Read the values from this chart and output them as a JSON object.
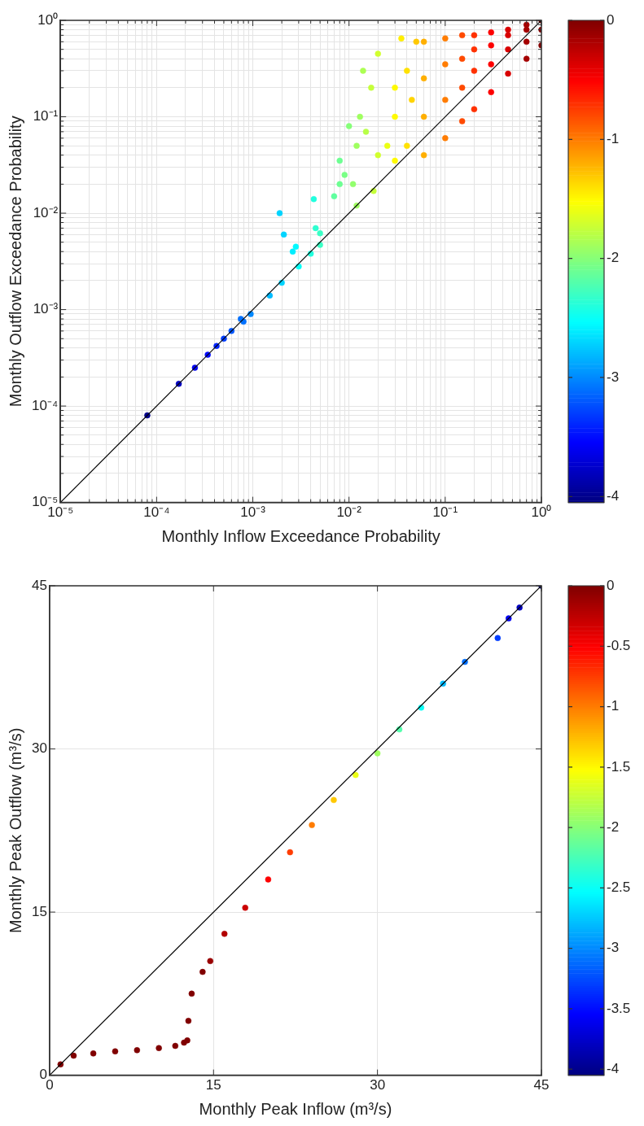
{
  "chart_data": [
    {
      "type": "scatter",
      "xlabel": "Monthly Inflow Exceedance Probability",
      "ylabel": "Monthly Outflow Exceedance Probability",
      "log": "xy",
      "grid": true,
      "xlim": [
        1e-05,
        1
      ],
      "ylim": [
        1e-05,
        1
      ],
      "xticks": [
        {
          "value": 1e-05,
          "label": "10⁻⁵"
        },
        {
          "value": 2e-05,
          "label": null
        },
        {
          "value": 3e-05,
          "label": null
        },
        {
          "value": 4e-05,
          "label": null
        },
        {
          "value": 5e-05,
          "label": null
        },
        {
          "value": 6e-05,
          "label": null
        },
        {
          "value": 7e-05,
          "label": null
        },
        {
          "value": 8e-05,
          "label": null
        },
        {
          "value": 9e-05,
          "label": null
        },
        {
          "value": 0.0001,
          "label": "10⁻⁴"
        },
        {
          "value": 0.0002,
          "label": null
        },
        {
          "value": 0.0003,
          "label": null
        },
        {
          "value": 0.0004,
          "label": null
        },
        {
          "value": 0.0005,
          "label": null
        },
        {
          "value": 0.0006,
          "label": null
        },
        {
          "value": 0.0007,
          "label": null
        },
        {
          "value": 0.0008,
          "label": null
        },
        {
          "value": 0.0009,
          "label": null
        },
        {
          "value": 0.001,
          "label": "10⁻³"
        },
        {
          "value": 0.002,
          "label": null
        },
        {
          "value": 0.003,
          "label": null
        },
        {
          "value": 0.004,
          "label": null
        },
        {
          "value": 0.005,
          "label": null
        },
        {
          "value": 0.006,
          "label": null
        },
        {
          "value": 0.007,
          "label": null
        },
        {
          "value": 0.008,
          "label": null
        },
        {
          "value": 0.009,
          "label": null
        },
        {
          "value": 0.01,
          "label": "10⁻²"
        },
        {
          "value": 0.02,
          "label": null
        },
        {
          "value": 0.03,
          "label": null
        },
        {
          "value": 0.04,
          "label": null
        },
        {
          "value": 0.05,
          "label": null
        },
        {
          "value": 0.06,
          "label": null
        },
        {
          "value": 0.07,
          "label": null
        },
        {
          "value": 0.08,
          "label": null
        },
        {
          "value": 0.09,
          "label": null
        },
        {
          "value": 0.1,
          "label": "10⁻¹"
        },
        {
          "value": 0.2,
          "label": null
        },
        {
          "value": 0.3,
          "label": null
        },
        {
          "value": 0.4,
          "label": null
        },
        {
          "value": 0.5,
          "label": null
        },
        {
          "value": 0.6,
          "label": null
        },
        {
          "value": 0.7,
          "label": null
        },
        {
          "value": 0.8,
          "label": null
        },
        {
          "value": 0.9,
          "label": null
        },
        {
          "value": 1,
          "label": "10⁰"
        }
      ],
      "yticks": [
        {
          "value": 1e-05,
          "label": "10⁻⁵"
        },
        {
          "value": 2e-05,
          "label": null
        },
        {
          "value": 3e-05,
          "label": null
        },
        {
          "value": 4e-05,
          "label": null
        },
        {
          "value": 5e-05,
          "label": null
        },
        {
          "value": 6e-05,
          "label": null
        },
        {
          "value": 7e-05,
          "label": null
        },
        {
          "value": 8e-05,
          "label": null
        },
        {
          "value": 9e-05,
          "label": null
        },
        {
          "value": 0.0001,
          "label": "10⁻⁴"
        },
        {
          "value": 0.0002,
          "label": null
        },
        {
          "value": 0.0003,
          "label": null
        },
        {
          "value": 0.0004,
          "label": null
        },
        {
          "value": 0.0005,
          "label": null
        },
        {
          "value": 0.0006,
          "label": null
        },
        {
          "value": 0.0007,
          "label": null
        },
        {
          "value": 0.0008,
          "label": null
        },
        {
          "value": 0.0009,
          "label": null
        },
        {
          "value": 0.001,
          "label": "10⁻³"
        },
        {
          "value": 0.002,
          "label": null
        },
        {
          "value": 0.003,
          "label": null
        },
        {
          "value": 0.004,
          "label": null
        },
        {
          "value": 0.005,
          "label": null
        },
        {
          "value": 0.006,
          "label": null
        },
        {
          "value": 0.007,
          "label": null
        },
        {
          "value": 0.008,
          "label": null
        },
        {
          "value": 0.009,
          "label": null
        },
        {
          "value": 0.01,
          "label": "10⁻²"
        },
        {
          "value": 0.02,
          "label": null
        },
        {
          "value": 0.03,
          "label": null
        },
        {
          "value": 0.04,
          "label": null
        },
        {
          "value": 0.05,
          "label": null
        },
        {
          "value": 0.06,
          "label": null
        },
        {
          "value": 0.07,
          "label": null
        },
        {
          "value": 0.08,
          "label": null
        },
        {
          "value": 0.09,
          "label": null
        },
        {
          "value": 0.1,
          "label": "10⁻¹"
        },
        {
          "value": 0.2,
          "label": null
        },
        {
          "value": 0.3,
          "label": null
        },
        {
          "value": 0.4,
          "label": null
        },
        {
          "value": 0.5,
          "label": null
        },
        {
          "value": 0.6,
          "label": null
        },
        {
          "value": 0.7,
          "label": null
        },
        {
          "value": 0.8,
          "label": null
        },
        {
          "value": 0.9,
          "label": null
        },
        {
          "value": 1,
          "label": "10⁰"
        }
      ],
      "clim": [
        -4.05,
        0
      ],
      "cticks": [
        0,
        -1,
        -2,
        -3,
        -4
      ],
      "series": [
        {
          "type": "scatter",
          "marker": "circle",
          "colors": [
            "#00008c",
            "#0000be",
            "#0000f1",
            "#000bff",
            "#0024ff",
            "#003dff",
            "#0057ff",
            "#0070ff",
            "#0070ff",
            "#0089ff",
            "#00bbff",
            "#00d4ff",
            "#08fff7",
            "#21ffde",
            "#3affc5",
            "#00d4ff",
            "#00d4ff",
            "#00eeff",
            "#00faff",
            "#21ffde",
            "#2effd1",
            "#3affc5",
            "#60ff9f",
            "#6dff92",
            "#79ff86",
            "#6dff92",
            "#92ff6d",
            "#9fff60",
            "#86ff79",
            "#9fff60",
            "#acff53",
            "#b8ff47",
            "#c5ff3a",
            "#d1ff2e",
            "#9fff60",
            "#c5ff3a",
            "#d1ff2e",
            "#ebff14",
            "#fffa00",
            "#fffa00",
            "#ffee00",
            "#fffa00",
            "#ffe100",
            "#ffe100",
            "#ffd400",
            "#ffc800",
            "#ffaf00",
            "#ffaf00",
            "#ffaf00",
            "#ffaf00",
            "#ff7c00",
            "#ff7c00",
            "#ff7c00",
            "#ff7c00",
            "#ff4a00",
            "#ff4a00",
            "#ff4a00",
            "#ff4a00",
            "#ff3100",
            "#ff3100",
            "#ff3100",
            "#ff3100",
            "#fd0000",
            "#fd0000",
            "#fd0000",
            "#fd0000",
            "#d80000",
            "#d80000",
            "#d80000",
            "#d80000",
            "#a50000",
            "#a50000",
            "#a50000",
            "#a50000",
            "#800000",
            "#800000",
            "#800000"
          ],
          "x": [
            8e-05,
            0.00017,
            0.00025,
            0.00034,
            0.00042,
            0.0005,
            0.0006,
            0.00075,
            0.0008,
            0.00095,
            0.0015,
            0.002,
            0.003,
            0.004,
            0.005,
            0.0019,
            0.0021,
            0.0026,
            0.0028,
            0.0043,
            0.0045,
            0.005,
            0.007,
            0.008,
            0.009,
            0.008,
            0.011,
            0.012,
            0.01,
            0.013,
            0.014,
            0.015,
            0.017,
            0.02,
            0.012,
            0.018,
            0.02,
            0.025,
            0.03,
            0.03,
            0.035,
            0.03,
            0.04,
            0.04,
            0.045,
            0.05,
            0.06,
            0.06,
            0.06,
            0.06,
            0.1,
            0.1,
            0.1,
            0.1,
            0.15,
            0.15,
            0.15,
            0.15,
            0.2,
            0.2,
            0.2,
            0.2,
            0.3,
            0.3,
            0.3,
            0.3,
            0.45,
            0.45,
            0.45,
            0.45,
            0.7,
            0.7,
            0.7,
            0.7,
            1,
            1,
            1
          ],
          "values": [
            8e-05,
            0.00017,
            0.00025,
            0.00034,
            0.00042,
            0.0005,
            0.0006,
            0.0008,
            0.00075,
            0.0009,
            0.0014,
            0.0019,
            0.0028,
            0.0038,
            0.0047,
            0.01,
            0.006,
            0.004,
            0.0045,
            0.014,
            0.007,
            0.0062,
            0.015,
            0.02,
            0.025,
            0.035,
            0.02,
            0.05,
            0.08,
            0.1,
            0.3,
            0.07,
            0.2,
            0.45,
            0.012,
            0.017,
            0.04,
            0.05,
            0.1,
            0.2,
            0.65,
            0.035,
            0.3,
            0.05,
            0.15,
            0.6,
            0.04,
            0.1,
            0.25,
            0.6,
            0.06,
            0.15,
            0.35,
            0.65,
            0.09,
            0.2,
            0.4,
            0.7,
            0.12,
            0.3,
            0.5,
            0.7,
            0.18,
            0.35,
            0.55,
            0.75,
            0.28,
            0.5,
            0.7,
            0.8,
            0.4,
            0.6,
            0.8,
            0.9,
            0.55,
            0.8,
            1
          ],
          "cvalues": [
            -4,
            -3.8,
            -3.6,
            -3.5,
            -3.4,
            -3.3,
            -3.2,
            -3.1,
            -3.1,
            -3,
            -2.8,
            -2.7,
            -2.5,
            -2.4,
            -2.3,
            -2.7,
            -2.7,
            -2.6,
            -2.55,
            -2.4,
            -2.35,
            -2.3,
            -2.15,
            -2.1,
            -2.05,
            -2.1,
            -1.95,
            -1.9,
            -2,
            -1.9,
            -1.85,
            -1.8,
            -1.75,
            -1.7,
            -1.9,
            -1.75,
            -1.7,
            -1.6,
            -1.5,
            -1.5,
            -1.45,
            -1.5,
            -1.4,
            -1.4,
            -1.35,
            -1.3,
            -1.2,
            -1.2,
            -1.2,
            -1.2,
            -1,
            -1,
            -1,
            -1,
            -0.8,
            -0.8,
            -0.8,
            -0.8,
            -0.7,
            -0.7,
            -0.7,
            -0.7,
            -0.5,
            -0.5,
            -0.5,
            -0.5,
            -0.35,
            -0.35,
            -0.35,
            -0.35,
            -0.15,
            -0.15,
            -0.15,
            -0.15,
            0,
            0,
            0
          ]
        },
        {
          "type": "line",
          "marker": "none",
          "color": "#000000",
          "x": [
            1e-05,
            1
          ],
          "values": [
            1e-05,
            1
          ]
        }
      ]
    },
    {
      "type": "scatter",
      "xlabel": "Monthly Peak Inflow (m³/s)",
      "ylabel": "Monthly Peak Outflow (m³/s)",
      "grid": true,
      "xlim": [
        0,
        45
      ],
      "ylim": [
        0,
        45
      ],
      "xticks": [
        0,
        15,
        30,
        45
      ],
      "yticks": [
        0,
        15,
        30,
        45
      ],
      "clim": [
        -4.05,
        0
      ],
      "cticks": [
        0,
        -0.5,
        -1,
        -1.5,
        -2,
        -2.5,
        -3,
        -3.5,
        -4
      ],
      "series": [
        {
          "type": "scatter",
          "marker": "circle",
          "colors": [
            "#800000",
            "#800000",
            "#800000",
            "#800000",
            "#800000",
            "#800000",
            "#800000",
            "#800000",
            "#800000",
            "#800000",
            "#800000",
            "#800000",
            "#990000",
            "#b20000",
            "#cb0000",
            "#fd0000",
            "#ff3d00",
            "#ff7c00",
            "#ffc800",
            "#ebff14",
            "#9fff60",
            "#53ffac",
            "#08fff7",
            "#00bbff",
            "#0070ff",
            "#003dff",
            "#0000f1",
            "#0000be",
            "#00008c"
          ],
          "x": [
            1,
            2.2,
            4,
            6,
            8,
            10,
            11.5,
            12.3,
            12.6,
            12.7,
            13,
            14,
            14.7,
            16,
            17.9,
            20,
            22,
            24,
            26,
            28,
            30,
            32,
            34,
            36,
            38,
            41,
            42,
            43,
            45
          ],
          "values": [
            1,
            1.8,
            2,
            2.2,
            2.3,
            2.5,
            2.7,
            3,
            3.2,
            5,
            7.5,
            9.5,
            10.5,
            13,
            15.4,
            18,
            20.5,
            23,
            25.3,
            27.6,
            29.6,
            31.8,
            33.8,
            36,
            38,
            40.2,
            42,
            43,
            45
          ],
          "cvalues": [
            0,
            0,
            0,
            0,
            0,
            0,
            0,
            0,
            0,
            0,
            0,
            0,
            -0.1,
            -0.2,
            -0.3,
            -0.5,
            -0.75,
            -1,
            -1.3,
            -1.6,
            -1.9,
            -2.2,
            -2.5,
            -2.8,
            -3.1,
            -3.3,
            -3.6,
            -3.8,
            -4
          ]
        },
        {
          "type": "line",
          "marker": "none",
          "color": "#000000",
          "x": [
            0,
            45
          ],
          "values": [
            0,
            45
          ]
        }
      ]
    }
  ]
}
